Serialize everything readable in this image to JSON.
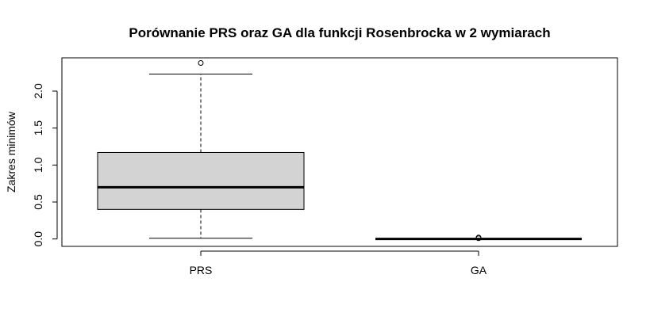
{
  "chart_data": {
    "type": "boxplot",
    "title": "Porównanie PRS oraz GA dla funkcji Rosenbrocka w 2 wymiarach",
    "xlabel": "",
    "ylabel": "Zakres minimów",
    "categories": [
      "PRS",
      "GA"
    ],
    "y_ticks": [
      "0.0",
      "0.5",
      "1.0",
      "1.5",
      "2.0"
    ],
    "ylim": [
      -0.1,
      2.45
    ],
    "grid": false,
    "box_fill": "#d3d3d3",
    "boxes": [
      {
        "name": "PRS",
        "min": 0.01,
        "q1": 0.4,
        "median": 0.7,
        "q3": 1.17,
        "max": 2.23,
        "outliers": [
          2.38
        ]
      },
      {
        "name": "GA",
        "min": 0.0,
        "q1": 0.0,
        "median": 0.0,
        "q3": 0.0,
        "max": 0.0,
        "outliers": [
          0.02,
          0.01
        ]
      }
    ]
  }
}
